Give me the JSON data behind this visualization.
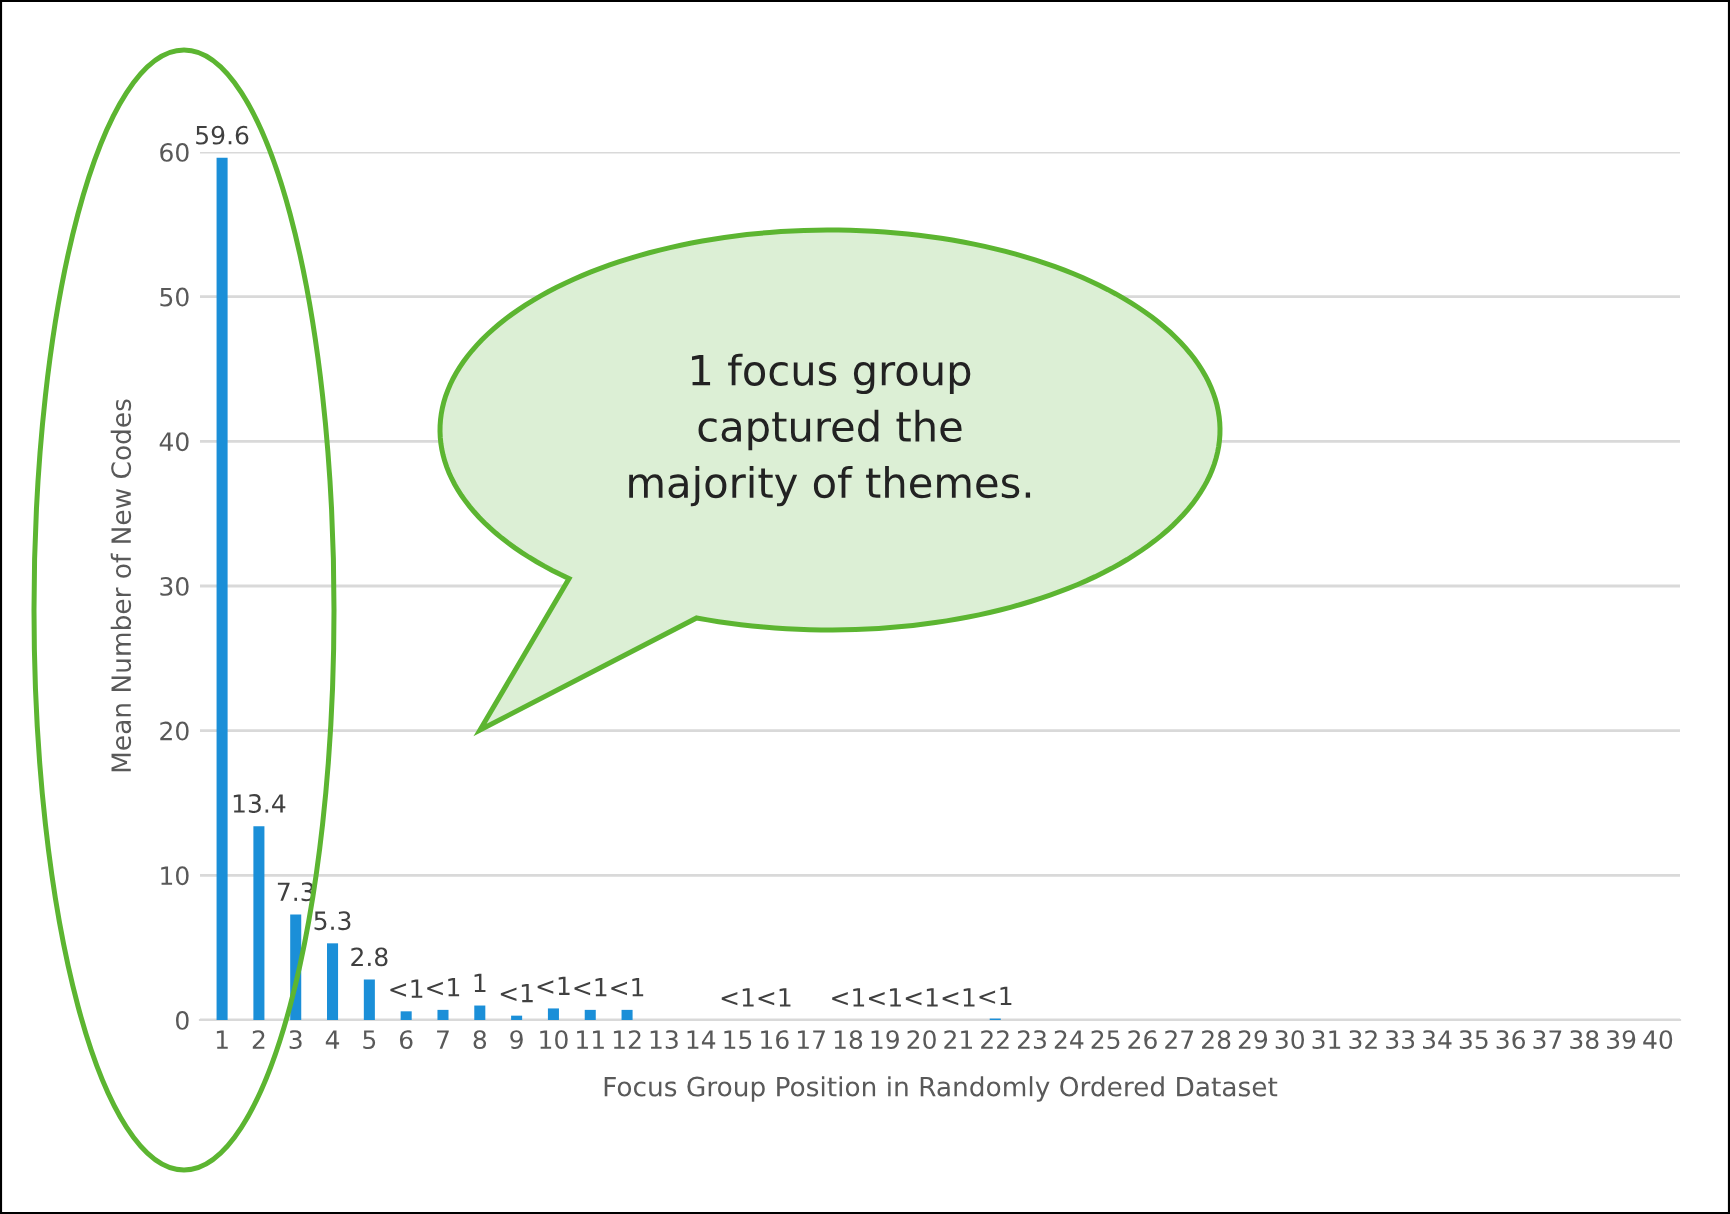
{
  "chart_data": {
    "type": "bar",
    "xlabel": "Focus Group Position in Randomly Ordered Dataset",
    "ylabel": "Mean Number of New Codes",
    "categories": [
      "1",
      "2",
      "3",
      "4",
      "5",
      "6",
      "7",
      "8",
      "9",
      "10",
      "11",
      "12",
      "13",
      "14",
      "15",
      "16",
      "17",
      "18",
      "19",
      "20",
      "21",
      "22",
      "23",
      "24",
      "25",
      "26",
      "27",
      "28",
      "29",
      "30",
      "31",
      "32",
      "33",
      "34",
      "35",
      "36",
      "37",
      "38",
      "39",
      "40"
    ],
    "values": [
      59.6,
      13.4,
      7.3,
      5.3,
      2.8,
      0.6,
      0.7,
      1,
      0.3,
      0.8,
      0.7,
      0.7,
      0,
      0,
      0,
      0,
      0,
      0,
      0,
      0,
      0,
      0.1,
      0,
      0,
      0,
      0,
      0,
      0,
      0,
      0,
      0,
      0,
      0,
      0,
      0,
      0,
      0,
      0,
      0,
      0
    ],
    "value_labels": [
      "59.6",
      "13.4",
      "7.3",
      "5.3",
      "2.8",
      "<1",
      "<1",
      "1",
      "<1",
      "<1",
      "<1",
      "<1",
      null,
      null,
      "<1",
      "<1",
      null,
      "<1",
      "<1",
      "<1",
      "<1",
      "<1",
      null,
      null,
      null,
      null,
      null,
      null,
      null,
      null,
      null,
      null,
      null,
      null,
      null,
      null,
      null,
      null,
      null,
      null
    ],
    "color": "#1b8fd8",
    "ylim": [
      0,
      60
    ],
    "yticks": [
      0,
      10,
      20,
      30,
      40,
      50,
      60
    ],
    "grid": "y",
    "annotations": [
      "1 focus group\ncaptured the\nmajority of themes."
    ]
  }
}
